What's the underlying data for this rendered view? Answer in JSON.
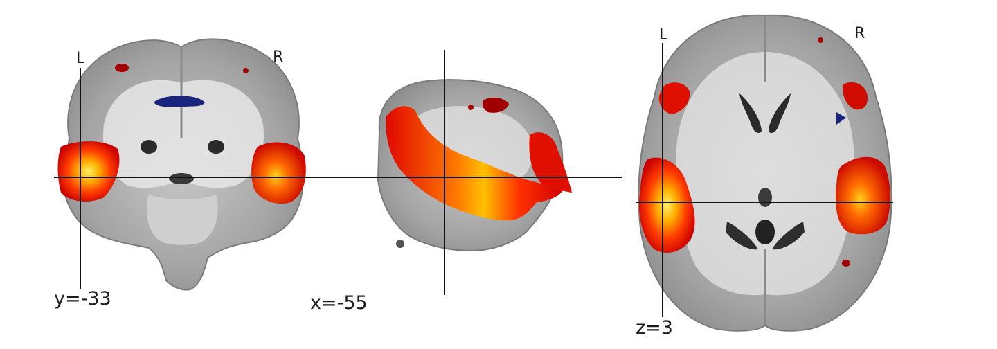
{
  "panels": {
    "coronal": {
      "coord_label": "y=-33",
      "left_label": "L",
      "right_label": "R"
    },
    "sagittal": {
      "coord_label": "x=-55"
    },
    "axial": {
      "coord_label": "z=3",
      "left_label": "L",
      "right_label": "R"
    }
  },
  "colors": {
    "activation_hot": "#ff1a00",
    "activation_core": "#ffd21a",
    "deactivation": "#1a237e",
    "crosshair": "#111111",
    "brain_gray": "#a8a8a8"
  }
}
